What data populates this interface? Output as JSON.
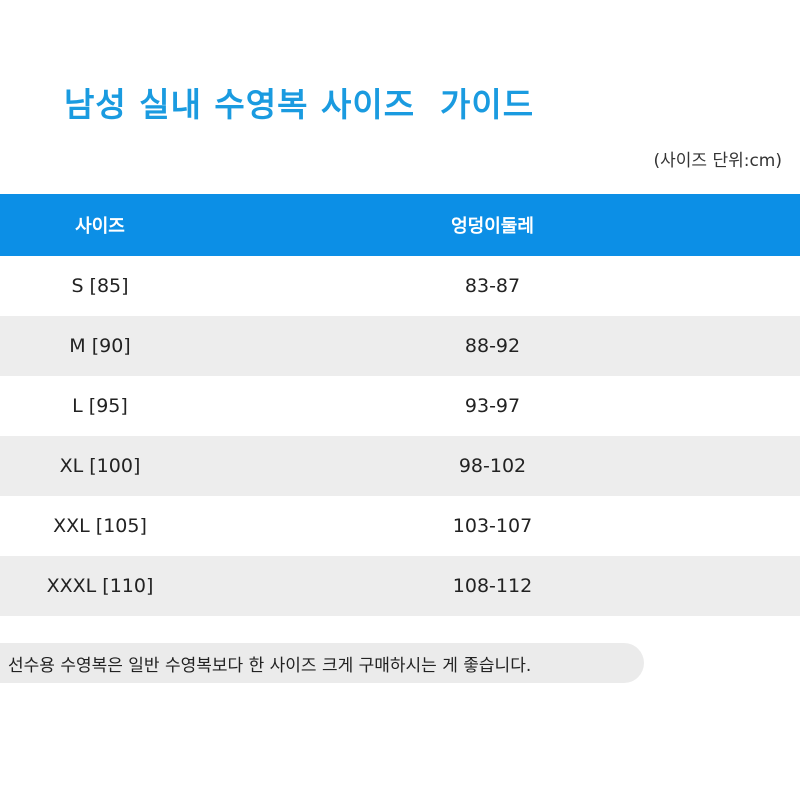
{
  "title": "남성 실내 수영복 사이즈  가이드",
  "unit_note": "(사이즈 단위:cm)",
  "table": {
    "headers": [
      "사이즈",
      "엉덩이둘레"
    ],
    "rows": [
      {
        "size": "S [85]",
        "hip": "83-87"
      },
      {
        "size": "M [90]",
        "hip": "88-92"
      },
      {
        "size": "L [95]",
        "hip": "93-97"
      },
      {
        "size": "XL [100]",
        "hip": "98-102"
      },
      {
        "size": "XXL [105]",
        "hip": "103-107"
      },
      {
        "size": "XXXL [110]",
        "hip": "108-112"
      }
    ]
  },
  "footer_note": "선수용 수영복은 일반 수영복보다 한 사이즈 크게 구매하시는 게 좋습니다.",
  "colors": {
    "title": "#1a9be0",
    "header_bg": "#0c8fe6",
    "stripe_bg": "#ededed"
  }
}
